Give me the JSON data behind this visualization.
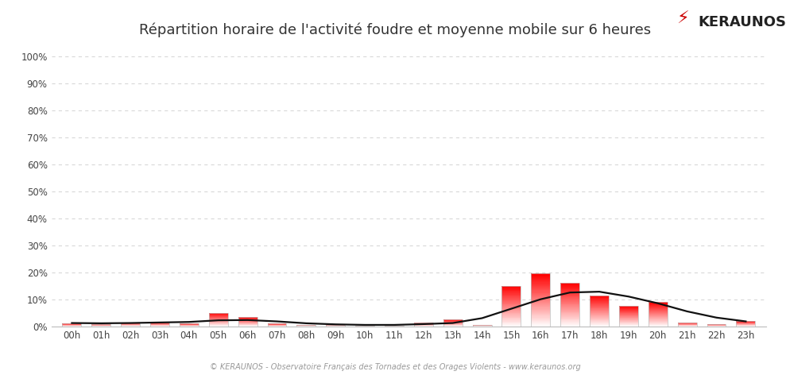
{
  "title": "Répartition horaire de l'activité foudre et moyenne mobile sur 6 heures",
  "hours": [
    "00h",
    "01h",
    "02h",
    "03h",
    "04h",
    "05h",
    "06h",
    "07h",
    "08h",
    "09h",
    "10h",
    "11h",
    "12h",
    "13h",
    "14h",
    "15h",
    "16h",
    "17h",
    "18h",
    "19h",
    "20h",
    "21h",
    "22h",
    "23h"
  ],
  "bar_values": [
    1.0,
    0.8,
    1.5,
    1.5,
    1.0,
    5.0,
    3.5,
    1.0,
    0.5,
    0.5,
    0.3,
    0.3,
    1.5,
    2.5,
    0.5,
    15.0,
    19.5,
    16.0,
    11.5,
    7.5,
    9.0,
    1.5,
    0.8,
    2.0
  ],
  "moving_avg": [
    1.2,
    1.1,
    1.2,
    1.4,
    1.6,
    2.2,
    2.3,
    1.8,
    1.1,
    0.7,
    0.5,
    0.5,
    0.8,
    1.2,
    3.0,
    6.5,
    10.0,
    12.5,
    12.8,
    11.0,
    8.5,
    5.5,
    3.2,
    1.8
  ],
  "bar_color_top": "#ff0000",
  "bar_color_bottom": "#fff0f0",
  "bar_edge_color": "#bbbbbb",
  "line_color": "#111111",
  "background_color": "#ffffff",
  "grid_color": "#cccccc",
  "ylabel_ticks": [
    "0%",
    "10%",
    "20%",
    "30%",
    "40%",
    "50%",
    "60%",
    "70%",
    "80%",
    "90%",
    "100%"
  ],
  "ytick_values": [
    0,
    10,
    20,
    30,
    40,
    50,
    60,
    70,
    80,
    90,
    100
  ],
  "ylim": [
    0,
    100
  ],
  "footer_text": "© KERAUNOS - Observatoire Français des Tornades et des Orages Violents - www.keraunos.org",
  "logo_text": "KERAUNOS",
  "title_fontsize": 13,
  "tick_fontsize": 8.5,
  "footer_fontsize": 7
}
